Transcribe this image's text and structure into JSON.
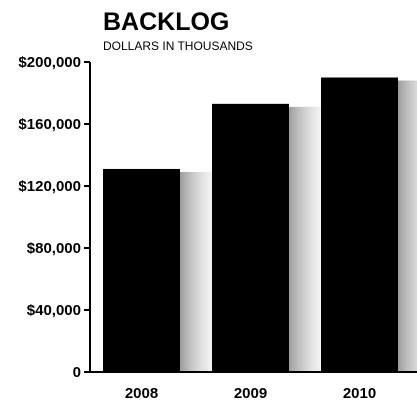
{
  "chart_data": {
    "type": "bar",
    "title": "BACKLOG",
    "subtitle": "DOLLARS IN THOUSANDS",
    "categories": [
      "2008",
      "2009",
      "2010"
    ],
    "values": [
      131000,
      173000,
      190000
    ],
    "ylim": [
      0,
      200000
    ],
    "yticks": [
      0,
      40000,
      80000,
      120000,
      160000,
      200000
    ],
    "ytick_labels": [
      "0",
      "$40,000",
      "$80,000",
      "$120,000",
      "$160,000",
      "$200,000"
    ],
    "grid": false,
    "bar_color": "#000000"
  }
}
